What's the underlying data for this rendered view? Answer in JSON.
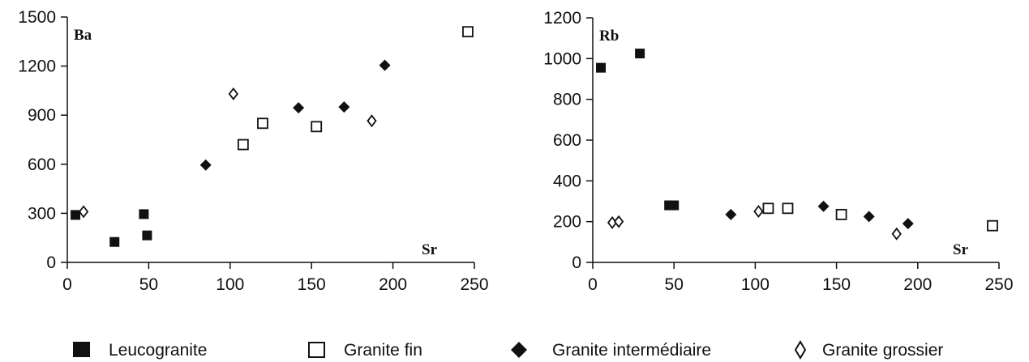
{
  "chart_data": [
    {
      "type": "scatter",
      "ylabel": "Ba",
      "xlabel": "Sr",
      "xlim": [
        0,
        250
      ],
      "ylim": [
        0,
        1500
      ],
      "x_ticks": [
        "0",
        "50",
        "100",
        "150",
        "200",
        "250"
      ],
      "y_ticks": [
        "0",
        "300",
        "600",
        "900",
        "1200",
        "1500"
      ],
      "series": [
        {
          "name": "Leucogranite",
          "points": [
            [
              5,
              290
            ],
            [
              29,
              125
            ],
            [
              47,
              295
            ],
            [
              49,
              165
            ]
          ]
        },
        {
          "name": "Granite fin",
          "points": [
            [
              108,
              720
            ],
            [
              120,
              850
            ],
            [
              153,
              830
            ],
            [
              246,
              1410
            ]
          ]
        },
        {
          "name": "Granite intermédiaire",
          "points": [
            [
              85,
              595
            ],
            [
              142,
              945
            ],
            [
              170,
              950
            ],
            [
              195,
              1205
            ]
          ]
        },
        {
          "name": "Granite grossier",
          "points": [
            [
              10,
              310
            ],
            [
              102,
              1030
            ],
            [
              187,
              865
            ]
          ]
        }
      ]
    },
    {
      "type": "scatter",
      "ylabel": "Rb",
      "xlabel": "Sr",
      "xlim": [
        0,
        250
      ],
      "ylim": [
        0,
        1200
      ],
      "x_ticks": [
        "0",
        "50",
        "100",
        "150",
        "200",
        "250"
      ],
      "y_ticks": [
        "0",
        "200",
        "400",
        "600",
        "800",
        "1000",
        "1200"
      ],
      "series": [
        {
          "name": "Leucogranite",
          "points": [
            [
              5,
              955
            ],
            [
              29,
              1025
            ],
            [
              47,
              280
            ],
            [
              50,
              280
            ]
          ]
        },
        {
          "name": "Granite fin",
          "points": [
            [
              108,
              265
            ],
            [
              120,
              265
            ],
            [
              153,
              235
            ],
            [
              246,
              180
            ]
          ]
        },
        {
          "name": "Granite intermédiaire",
          "points": [
            [
              85,
              235
            ],
            [
              142,
              275
            ],
            [
              170,
              225
            ],
            [
              194,
              190
            ]
          ]
        },
        {
          "name": "Granite grossier",
          "points": [
            [
              12,
              195
            ],
            [
              16,
              200
            ],
            [
              102,
              250
            ],
            [
              187,
              140
            ]
          ]
        }
      ]
    }
  ],
  "legend": {
    "items": [
      {
        "label": "Leucogranite",
        "marker": "filled-square"
      },
      {
        "label": "Granite fin",
        "marker": "open-square"
      },
      {
        "label": "Granite intermédiaire",
        "marker": "filled-diamond"
      },
      {
        "label": "Granite grossier",
        "marker": "open-diamond"
      }
    ]
  },
  "colors": {
    "ink": "#111111",
    "background": "#ffffff"
  }
}
